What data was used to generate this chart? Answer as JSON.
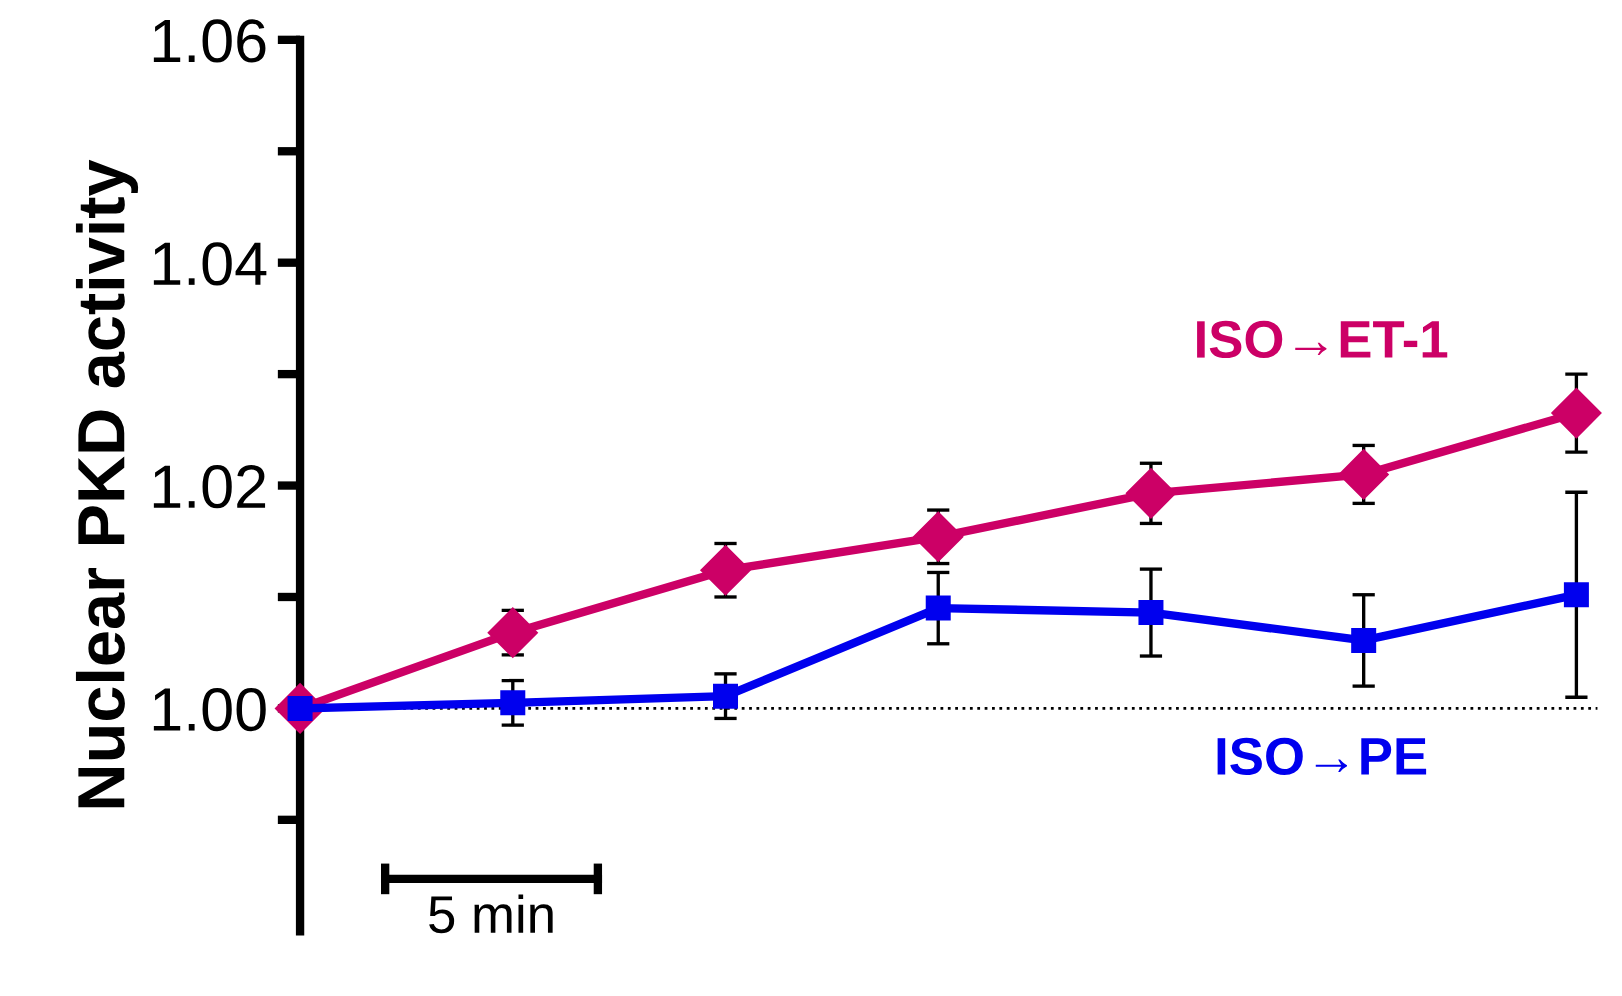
{
  "chart_data": {
    "type": "line",
    "ylabel": "Nuclear PKD activity",
    "categories": [
      null,
      null,
      null,
      null,
      null,
      null,
      null
    ],
    "series": [
      {
        "name": "ISO→ET-1",
        "color": "#cc0066",
        "marker": "diamond",
        "values": [
          1.0,
          1.0068,
          1.0124,
          1.0154,
          1.0193,
          1.021,
          1.0265
        ],
        "errors": [
          null,
          0.002,
          0.0024,
          0.0024,
          0.0027,
          0.0026,
          0.0035
        ]
      },
      {
        "name": "ISO→PE",
        "color": "#0000ee",
        "marker": "square",
        "values": [
          1.0,
          1.0005,
          1.0011,
          1.009,
          1.0086,
          1.0061,
          1.0102
        ],
        "errors": [
          null,
          0.002,
          0.002,
          0.0032,
          0.0039,
          0.0041,
          0.0092
        ]
      }
    ],
    "ylim": [
      0.98,
      1.06
    ],
    "yticks": [
      {
        "value": 0.99,
        "label": null
      },
      {
        "value": 1.0,
        "label": "1.00"
      },
      {
        "value": 1.01,
        "label": null
      },
      {
        "value": 1.02,
        "label": "1.02"
      },
      {
        "value": 1.03,
        "label": null
      },
      {
        "value": 1.04,
        "label": "1.04"
      },
      {
        "value": 1.05,
        "label": null
      },
      {
        "value": 1.06,
        "label": "1.06"
      }
    ],
    "ref_lines": [
      {
        "axis": "y",
        "value": 1.0,
        "color": "#000000",
        "line_style": "dotted"
      }
    ],
    "annotations": [
      "5 min"
    ],
    "tick_labels": "y",
    "grid": false
  }
}
